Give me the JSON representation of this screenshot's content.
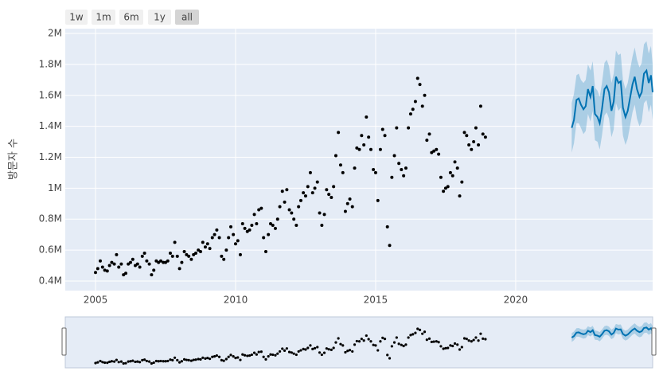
{
  "range_buttons": [
    "1w",
    "1m",
    "6m",
    "1y",
    "all"
  ],
  "active_button": 4,
  "chart_data": {
    "type": "scatter",
    "y_label": "방문자 수",
    "xlim": [
      2003.92,
      2024.89
    ],
    "xticks": [
      2005,
      2010,
      2015,
      2020
    ],
    "ylim": [
      338000,
      2031000
    ],
    "yticks": [
      {
        "value": 400000,
        "label": "0.4M"
      },
      {
        "value": 600000,
        "label": "0.6M"
      },
      {
        "value": 800000,
        "label": "0.8M"
      },
      {
        "value": 1000000,
        "label": "1M"
      },
      {
        "value": 1200000,
        "label": "1.2M"
      },
      {
        "value": 1400000,
        "label": "1.4M"
      },
      {
        "value": 1600000,
        "label": "1.6M"
      },
      {
        "value": 1800000,
        "label": "1.8M"
      },
      {
        "value": 2000000,
        "label": "2M"
      }
    ],
    "grid": true,
    "points": {
      "color": "#000000",
      "x": [
        2005.0,
        2005.08,
        2005.17,
        2005.25,
        2005.33,
        2005.42,
        2005.5,
        2005.58,
        2005.67,
        2005.75,
        2005.83,
        2005.92,
        2006.0,
        2006.08,
        2006.17,
        2006.25,
        2006.33,
        2006.42,
        2006.5,
        2006.58,
        2006.67,
        2006.75,
        2006.83,
        2006.92,
        2007.0,
        2007.08,
        2007.17,
        2007.25,
        2007.33,
        2007.42,
        2007.5,
        2007.58,
        2007.67,
        2007.75,
        2007.83,
        2007.92,
        2008.0,
        2008.08,
        2008.17,
        2008.25,
        2008.33,
        2008.42,
        2008.5,
        2008.58,
        2008.67,
        2008.75,
        2008.83,
        2008.92,
        2009.0,
        2009.08,
        2009.17,
        2009.25,
        2009.33,
        2009.42,
        2009.5,
        2009.58,
        2009.67,
        2009.75,
        2009.83,
        2009.92,
        2010.0,
        2010.08,
        2010.17,
        2010.25,
        2010.33,
        2010.42,
        2010.5,
        2010.58,
        2010.67,
        2010.75,
        2010.83,
        2010.92,
        2011.0,
        2011.08,
        2011.17,
        2011.25,
        2011.33,
        2011.42,
        2011.5,
        2011.58,
        2011.67,
        2011.75,
        2011.83,
        2011.92,
        2012.0,
        2012.08,
        2012.17,
        2012.25,
        2012.33,
        2012.42,
        2012.5,
        2012.58,
        2012.67,
        2012.75,
        2012.83,
        2012.92,
        2013.0,
        2013.08,
        2013.17,
        2013.25,
        2013.33,
        2013.42,
        2013.5,
        2013.58,
        2013.67,
        2013.75,
        2013.83,
        2013.92,
        2014.0,
        2014.08,
        2014.17,
        2014.25,
        2014.33,
        2014.42,
        2014.5,
        2014.58,
        2014.67,
        2014.75,
        2014.83,
        2014.92,
        2015.0,
        2015.08,
        2015.17,
        2015.25,
        2015.33,
        2015.42,
        2015.5,
        2015.58,
        2015.67,
        2015.75,
        2015.83,
        2015.92,
        2016.0,
        2016.08,
        2016.17,
        2016.25,
        2016.33,
        2016.42,
        2016.5,
        2016.58,
        2016.67,
        2016.75,
        2016.83,
        2016.92,
        2017.0,
        2017.08,
        2017.17,
        2017.25,
        2017.33,
        2017.42,
        2017.5,
        2017.58,
        2017.67,
        2017.75,
        2017.83,
        2017.92,
        2018.0,
        2018.08,
        2018.17,
        2018.25,
        2018.33,
        2018.42,
        2018.5,
        2018.58,
        2018.67,
        2018.75,
        2018.83,
        2018.92
      ],
      "values": [
        455000,
        480000,
        530000,
        490000,
        470000,
        465000,
        500000,
        520000,
        510000,
        570000,
        490000,
        510000,
        440000,
        450000,
        510000,
        520000,
        540000,
        500000,
        510000,
        490000,
        560000,
        580000,
        530000,
        510000,
        440000,
        470000,
        530000,
        520000,
        530000,
        520000,
        520000,
        530000,
        580000,
        560000,
        650000,
        560000,
        480000,
        520000,
        590000,
        570000,
        560000,
        540000,
        570000,
        580000,
        600000,
        590000,
        650000,
        620000,
        640000,
        610000,
        680000,
        700000,
        730000,
        680000,
        560000,
        540000,
        600000,
        680000,
        750000,
        700000,
        640000,
        660000,
        570000,
        770000,
        740000,
        720000,
        730000,
        760000,
        830000,
        770000,
        860000,
        870000,
        680000,
        590000,
        700000,
        770000,
        760000,
        740000,
        800000,
        880000,
        980000,
        910000,
        990000,
        860000,
        840000,
        800000,
        760000,
        880000,
        920000,
        970000,
        950000,
        1010000,
        1100000,
        970000,
        1000000,
        1040000,
        840000,
        760000,
        830000,
        990000,
        960000,
        940000,
        1010000,
        1210000,
        1360000,
        1150000,
        1100000,
        850000,
        900000,
        930000,
        880000,
        1130000,
        1260000,
        1250000,
        1340000,
        1280000,
        1460000,
        1330000,
        1250000,
        1120000,
        1100000,
        920000,
        1250000,
        1380000,
        1340000,
        750000,
        630000,
        1070000,
        1210000,
        1390000,
        1160000,
        1120000,
        1080000,
        1130000,
        1390000,
        1480000,
        1510000,
        1560000,
        1710000,
        1670000,
        1530000,
        1600000,
        1310000,
        1350000,
        1230000,
        1240000,
        1250000,
        1220000,
        1070000,
        980000,
        1000000,
        1010000,
        1100000,
        1080000,
        1170000,
        1130000,
        950000,
        1040000,
        1360000,
        1340000,
        1280000,
        1250000,
        1300000,
        1390000,
        1280000,
        1530000,
        1350000,
        1330000
      ]
    },
    "forecast": {
      "color": "#0072b2",
      "x": [
        2022.0,
        2022.08,
        2022.17,
        2022.25,
        2022.33,
        2022.42,
        2022.5,
        2022.58,
        2022.67,
        2022.75,
        2022.83,
        2022.92,
        2023.0,
        2023.08,
        2023.17,
        2023.25,
        2023.33,
        2023.42,
        2023.5,
        2023.58,
        2023.67,
        2023.75,
        2023.83,
        2023.92,
        2024.0,
        2024.08,
        2024.17,
        2024.25,
        2024.33,
        2024.42,
        2024.5,
        2024.58,
        2024.67,
        2024.75,
        2024.83,
        2024.89
      ],
      "values": [
        1390000,
        1440000,
        1570000,
        1580000,
        1540000,
        1510000,
        1530000,
        1640000,
        1590000,
        1660000,
        1480000,
        1460000,
        1420000,
        1510000,
        1640000,
        1660000,
        1620000,
        1500000,
        1560000,
        1720000,
        1680000,
        1690000,
        1520000,
        1460000,
        1500000,
        1580000,
        1670000,
        1720000,
        1640000,
        1590000,
        1620000,
        1740000,
        1760000,
        1680000,
        1730000,
        1620000
      ],
      "lower": [
        1230000,
        1290000,
        1420000,
        1420000,
        1390000,
        1350000,
        1370000,
        1480000,
        1430000,
        1500000,
        1310000,
        1300000,
        1250000,
        1340000,
        1470000,
        1490000,
        1450000,
        1330000,
        1380000,
        1550000,
        1500000,
        1520000,
        1340000,
        1280000,
        1320000,
        1400000,
        1490000,
        1540000,
        1450000,
        1400000,
        1430000,
        1550000,
        1570000,
        1490000,
        1540000,
        1440000
      ],
      "upper": [
        1550000,
        1610000,
        1730000,
        1740000,
        1700000,
        1680000,
        1700000,
        1800000,
        1760000,
        1820000,
        1650000,
        1630000,
        1590000,
        1680000,
        1810000,
        1830000,
        1790000,
        1680000,
        1740000,
        1890000,
        1860000,
        1870000,
        1700000,
        1640000,
        1680000,
        1760000,
        1850000,
        1910000,
        1830000,
        1780000,
        1810000,
        1930000,
        1950000,
        1870000,
        1920000,
        1800000
      ]
    }
  }
}
